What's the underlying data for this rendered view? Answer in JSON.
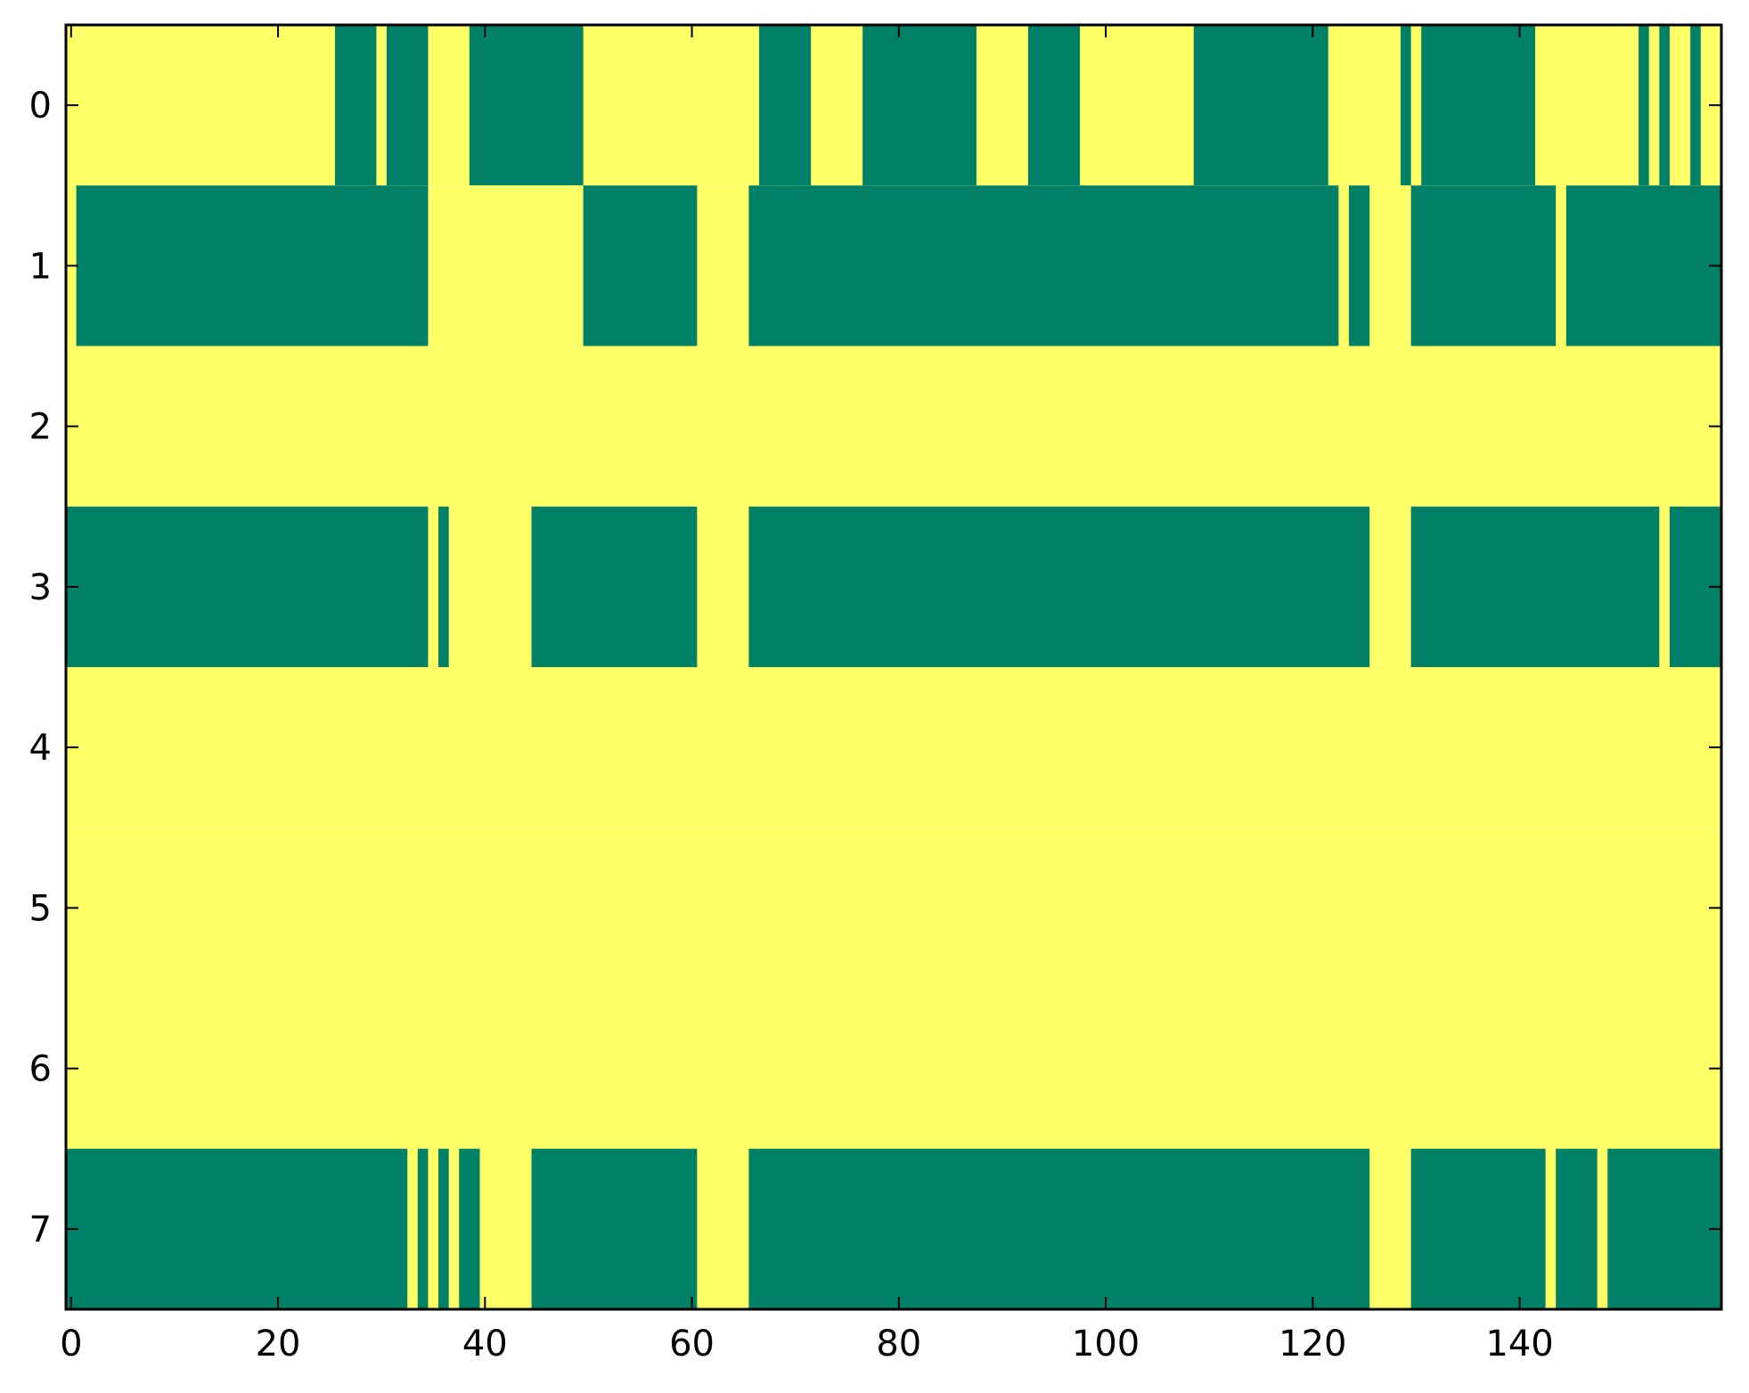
{
  "chart_data": {
    "type": "heatmap",
    "title": "",
    "xlabel": "",
    "ylabel": "",
    "xlim": [
      -0.5,
      159.5
    ],
    "ylim": [
      7.5,
      -0.5
    ],
    "x_ticks": [
      0,
      20,
      40,
      60,
      80,
      100,
      120,
      140
    ],
    "y_ticks": [
      0,
      1,
      2,
      3,
      4,
      5,
      6,
      7
    ],
    "n_cols": 160,
    "value_colors": {
      "0": "#FFFF66",
      "1": "#008066"
    },
    "colormap": "summer_r (yellow = low, dark green = high)",
    "row_segments": [
      {
        "row": 0,
        "dark_ranges": [
          [
            26,
            29
          ],
          [
            31,
            34
          ],
          [
            39,
            49
          ],
          [
            67,
            71
          ],
          [
            77,
            87
          ],
          [
            93,
            97
          ],
          [
            109,
            121
          ],
          [
            129,
            129
          ],
          [
            131,
            141
          ],
          [
            152,
            152
          ],
          [
            154,
            154
          ],
          [
            157,
            157
          ]
        ]
      },
      {
        "row": 1,
        "dark_ranges": [
          [
            1,
            34
          ],
          [
            50,
            60
          ],
          [
            66,
            122
          ],
          [
            124,
            125
          ],
          [
            130,
            143
          ],
          [
            145,
            159
          ]
        ]
      },
      {
        "row": 2,
        "dark_ranges": []
      },
      {
        "row": 3,
        "dark_ranges": [
          [
            0,
            34
          ],
          [
            36,
            36
          ],
          [
            45,
            60
          ],
          [
            66,
            125
          ],
          [
            130,
            153
          ],
          [
            155,
            159
          ]
        ]
      },
      {
        "row": 4,
        "dark_ranges": []
      },
      {
        "row": 5,
        "dark_ranges": []
      },
      {
        "row": 6,
        "dark_ranges": []
      },
      {
        "row": 7,
        "dark_ranges": [
          [
            0,
            32
          ],
          [
            34,
            34
          ],
          [
            36,
            36
          ],
          [
            38,
            39
          ],
          [
            45,
            60
          ],
          [
            66,
            125
          ],
          [
            130,
            142
          ],
          [
            144,
            147
          ],
          [
            149,
            159
          ]
        ]
      }
    ]
  }
}
